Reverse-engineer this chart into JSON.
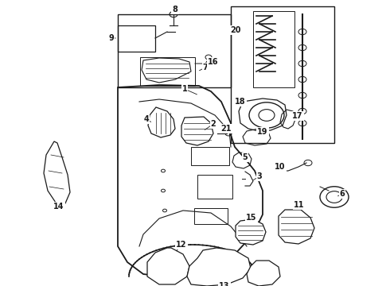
{
  "bg_color": "#ffffff",
  "line_color": "#1a1a1a",
  "fig_width": 4.9,
  "fig_height": 3.6,
  "dpi": 100,
  "label_fontsize": 7,
  "label_fontweight": "bold"
}
